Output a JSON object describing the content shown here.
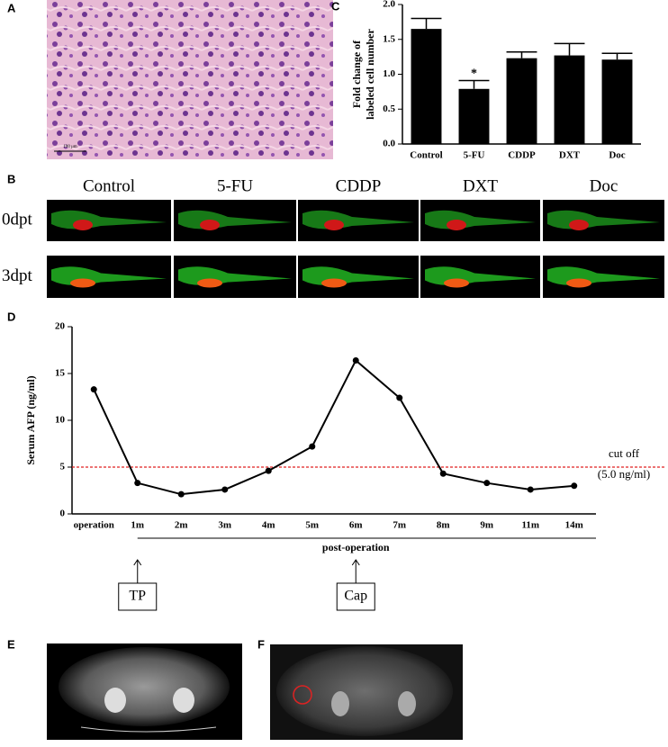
{
  "panel_labels": [
    "A",
    "B",
    "C",
    "D",
    "E",
    "F"
  ],
  "panel_a": {
    "scale_bar": "100 μm"
  },
  "panel_b": {
    "columns": [
      "Control",
      "5-FU",
      "CDDP",
      "DXT",
      "Doc"
    ],
    "rows": [
      "0dpt",
      "3dpt"
    ]
  },
  "chart_data": [
    {
      "type": "bar",
      "y_label": [
        "Fold change of",
        "labeled cell number"
      ],
      "categories": [
        "Control",
        "5-FU",
        "CDDP",
        "DXT",
        "Doc"
      ],
      "values": [
        1.65,
        0.79,
        1.23,
        1.27,
        1.21
      ],
      "errors": [
        0.15,
        0.12,
        0.09,
        0.17,
        0.09
      ],
      "color": "#000000",
      "annotations": [
        null,
        "*",
        null,
        null,
        null
      ],
      "ylim": [
        0,
        2
      ],
      "yticks": [
        {
          "value": 0,
          "label": "0.0"
        },
        {
          "value": 0.5,
          "label": "0.5"
        },
        {
          "value": 1,
          "label": "1.0"
        },
        {
          "value": 1.5,
          "label": "1.5"
        },
        {
          "value": 2,
          "label": "2.0"
        }
      ]
    },
    {
      "type": "line",
      "y_label": "Serum AFP (ng/ml)",
      "categories": [
        "operation",
        "1m",
        "2m",
        "3m",
        "4m",
        "5m",
        "6m",
        "7m",
        "8m",
        "9m",
        "11m",
        "14m"
      ],
      "values": [
        13.3,
        3.3,
        2.1,
        2.6,
        4.6,
        7.2,
        16.4,
        12.4,
        4.3,
        3.3,
        2.6,
        3.0
      ],
      "color": "#000000",
      "cutoff": 5,
      "cutoff_color": "#e02020",
      "cutoff_label": [
        "cut off",
        "(5.0 ng/ml)"
      ],
      "x_group_label": "post-operation",
      "event_labels": [
        "TP",
        "Cap"
      ],
      "ylim": [
        0,
        20
      ],
      "yticks": [
        0,
        5,
        10,
        15,
        20
      ]
    }
  ]
}
